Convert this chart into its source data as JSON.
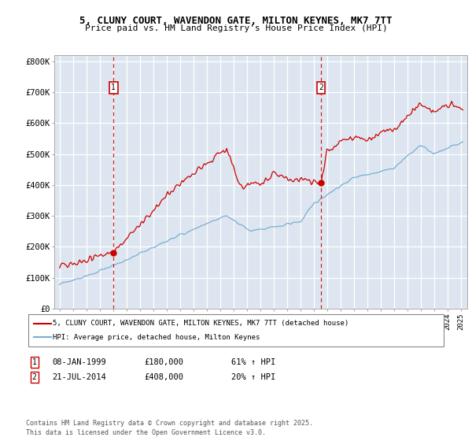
{
  "title_line1": "5, CLUNY COURT, WAVENDON GATE, MILTON KEYNES, MK7 7TT",
  "title_line2": "Price paid vs. HM Land Registry's House Price Index (HPI)",
  "background_color": "#dde6f0",
  "yticks": [
    0,
    100000,
    200000,
    300000,
    400000,
    500000,
    600000,
    700000,
    800000
  ],
  "ytick_labels": [
    "£0",
    "£100K",
    "£200K",
    "£300K",
    "£400K",
    "£500K",
    "£600K",
    "£700K",
    "£800K"
  ],
  "xmin": 1994.6,
  "xmax": 2025.5,
  "ymin": 0,
  "ymax": 820000,
  "purchase1_x": 1999.03,
  "purchase1_y": 180000,
  "purchase2_x": 2014.55,
  "purchase2_y": 408000,
  "legend_line1": "5, CLUNY COURT, WAVENDON GATE, MILTON KEYNES, MK7 7TT (detached house)",
  "legend_line2": "HPI: Average price, detached house, Milton Keynes",
  "annotation1_date": "08-JAN-1999",
  "annotation1_price": "£180,000",
  "annotation1_hpi": "61% ↑ HPI",
  "annotation2_date": "21-JUL-2014",
  "annotation2_price": "£408,000",
  "annotation2_hpi": "20% ↑ HPI",
  "footer": "Contains HM Land Registry data © Crown copyright and database right 2025.\nThis data is licensed under the Open Government Licence v3.0.",
  "red_color": "#cc0000",
  "blue_color": "#7aadd4"
}
